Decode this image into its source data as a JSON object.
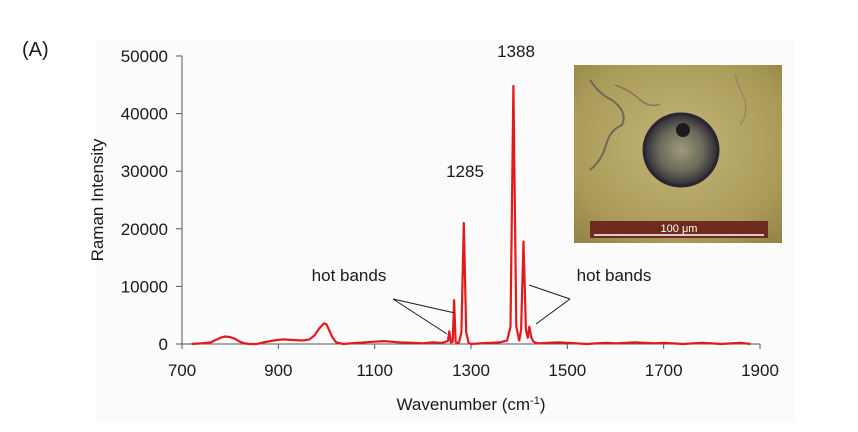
{
  "panel_label": "(A)",
  "chart_data": {
    "type": "line",
    "title": "",
    "xlabel": "Wavenumber (cm",
    "xlabel_sup": "-1",
    "xlabel_end": ")",
    "ylabel": "Raman Intensity",
    "xlim": [
      700,
      1900
    ],
    "ylim": [
      0,
      50000
    ],
    "xticks": [
      700,
      900,
      1100,
      1300,
      1500,
      1700,
      1900
    ],
    "yticks": [
      0,
      10000,
      20000,
      30000,
      40000,
      50000
    ],
    "grid": false,
    "legend": "none",
    "series_color": "#e31a1c",
    "series": [
      {
        "x": [
          720,
          740,
          760,
          770,
          780,
          790,
          800,
          810,
          820,
          830,
          840,
          855,
          870,
          890,
          910,
          930,
          950,
          965,
          975,
          985,
          995,
          1000,
          1005,
          1012,
          1020,
          1035,
          1050,
          1080,
          1100,
          1120,
          1150,
          1180,
          1200,
          1220,
          1240,
          1252,
          1255,
          1258,
          1262,
          1265,
          1268,
          1271,
          1275,
          1280,
          1285,
          1290,
          1295,
          1300,
          1320,
          1340,
          1360,
          1375,
          1382,
          1388,
          1394,
          1400,
          1404,
          1409,
          1414,
          1418,
          1421,
          1425,
          1429,
          1432,
          1440,
          1460,
          1480,
          1500,
          1520,
          1540,
          1560,
          1580,
          1600,
          1620,
          1640,
          1660,
          1680,
          1700,
          1720,
          1740,
          1760,
          1780,
          1800,
          1820,
          1840,
          1860,
          1880
        ],
        "y": [
          0,
          100,
          300,
          700,
          1100,
          1300,
          1200,
          900,
          400,
          100,
          0,
          0,
          300,
          600,
          800,
          700,
          600,
          800,
          1500,
          2700,
          3600,
          3400,
          2500,
          1200,
          300,
          0,
          100,
          300,
          400,
          500,
          300,
          200,
          100,
          300,
          200,
          500,
          2200,
          300,
          400,
          7600,
          400,
          100,
          300,
          2000,
          21000,
          2000,
          200,
          0,
          100,
          200,
          300,
          600,
          3000,
          44800,
          3000,
          600,
          2500,
          17800,
          2500,
          1100,
          3000,
          1200,
          500,
          300,
          100,
          200,
          300,
          200,
          100,
          0,
          100,
          200,
          100,
          200,
          300,
          200,
          100,
          200,
          100,
          0,
          100,
          200,
          100,
          0,
          100,
          200,
          0
        ]
      }
    ],
    "annotations": [
      {
        "text": "1388",
        "x": 1388
      },
      {
        "text": "1285",
        "x": 1285
      },
      {
        "text": "hot bands",
        "side": "left"
      },
      {
        "text": "hot bands",
        "side": "right"
      }
    ]
  },
  "inset": {
    "description_label": "micrograph",
    "scale_bar_text": "100 μm",
    "bg_color": "#b6a664",
    "scale_bar_color": "#6e2b1e"
  }
}
